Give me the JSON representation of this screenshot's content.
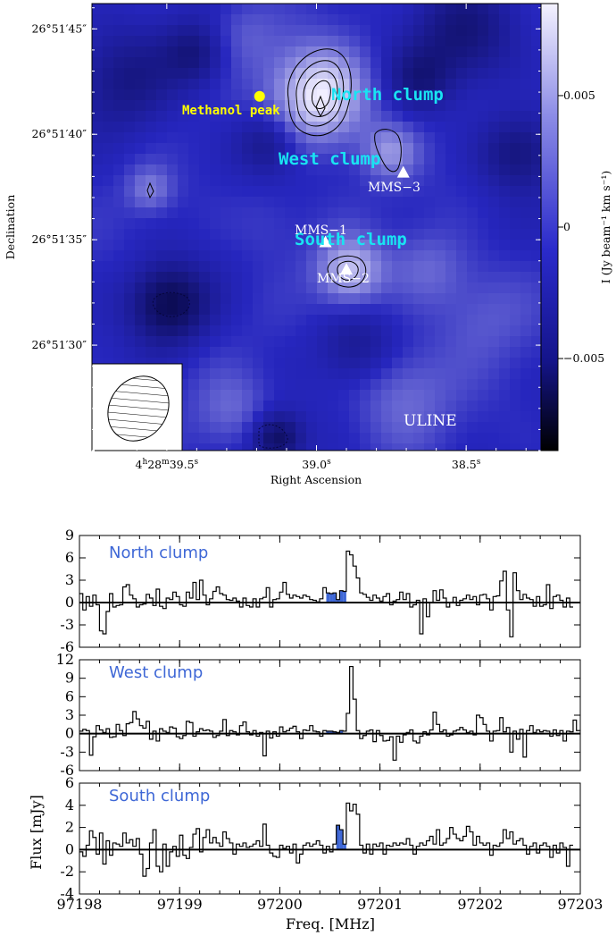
{
  "colors": {
    "map_low": "#05053a",
    "map_mid": "#2626c8",
    "map_high": "#f2f0ff",
    "cyan": "#19e3f2",
    "yellow": "#ffff00",
    "fill_blue": "#3e67d6"
  },
  "chart_data": [
    {
      "type": "heatmap",
      "subtitle": "ULINE",
      "xlabel": "Right Ascension",
      "ylabel": "Declination",
      "x_ticks": [
        {
          "main": "4",
          "sup1": "h",
          "mid": "28",
          "sup2": "m",
          "tail": "39.5",
          "sup3": "s",
          "pre": ""
        },
        {
          "main": "39.0",
          "sup1": "s",
          "pre": ""
        },
        {
          "main": "38.5",
          "sup1": "s",
          "pre": ""
        }
      ],
      "x_tick_values": [
        39.5,
        39.0,
        38.5
      ],
      "xlim": [
        39.75,
        38.25
      ],
      "y_tick_labels": [
        "26°51′45″",
        "26°51′40″",
        "26°51′35″",
        "26°51′30″"
      ],
      "y_tick_values": [
        45,
        40,
        35,
        30
      ],
      "ylim": [
        25.0,
        46.2
      ],
      "colorbar_label": "I (Jy beam⁻¹ km s⁻¹)",
      "colorbar_ticks": [
        "0.005",
        "0",
        "−0.005"
      ],
      "colorbar_tick_values": [
        0.005,
        0,
        -0.005
      ],
      "colorbar_range": [
        -0.0085,
        0.0085
      ],
      "annotations": {
        "north_clump": "North clump",
        "west_clump": "West clump",
        "south_clump": "South clump",
        "methanol_peak": "Methanol peak",
        "mms1": "MMS−1",
        "mms2": "MMS−2",
        "mms3": "MMS−3"
      },
      "sources": [
        {
          "name": "Methanol peak",
          "ra": 39.19,
          "dec": 41.8,
          "marker": "circle"
        },
        {
          "name": "MMS-1",
          "ra": 38.97,
          "dec": 34.9,
          "marker": "triangle"
        },
        {
          "name": "MMS-2",
          "ra": 38.9,
          "dec": 33.6,
          "marker": "triangle"
        },
        {
          "name": "MMS-3",
          "ra": 38.71,
          "dec": 38.2,
          "marker": "triangle"
        }
      ]
    },
    {
      "type": "line",
      "title": "North clump",
      "xlabel": "Freq. [MHz]",
      "ylabel": "Flux [mJy]",
      "x_ticks": [
        "97198",
        "97199",
        "97200",
        "97201",
        "97202",
        "97203"
      ],
      "y_ticks": [
        "9",
        "6",
        "3",
        "0",
        "-3",
        "-6"
      ],
      "xlim": [
        97198,
        97203
      ],
      "ylim": [
        -6,
        9
      ],
      "highlight_range": [
        97200.45,
        97200.67
      ],
      "x_start": 97198.0,
      "channel_width": 0.0333,
      "values": [
        1.2,
        -1.0,
        0.8,
        -0.5,
        1.0,
        -0.3,
        -3.8,
        -4.2,
        -1.2,
        1.2,
        -0.6,
        -0.4,
        -0.3,
        2.1,
        2.4,
        1.0,
        0.5,
        -0.6,
        -0.3,
        -0.2,
        1.1,
        0.6,
        -0.4,
        1.8,
        -0.5,
        -0.8,
        0.6,
        0.4,
        1.4,
        0.8,
        -0.3,
        -0.5,
        1.4,
        0.6,
        2.7,
        0.4,
        3.0,
        1.0,
        -0.3,
        0.5,
        1.5,
        2.1,
        1.2,
        1.0,
        0.4,
        0.3,
        0.6,
        0.2,
        -0.6,
        0.6,
        -0.4,
        -0.6,
        0.5,
        -0.6,
        0.5,
        0.7,
        2.0,
        -0.6,
        0.4,
        0.5,
        1.4,
        2.7,
        1.1,
        0.6,
        1.0,
        0.8,
        0.6,
        1.0,
        0.8,
        0.4,
        0.3,
        0.1,
        0.5,
        2.0,
        1.3,
        1.2,
        1.3,
        0.4,
        1.6,
        1.5,
        6.9,
        6.4,
        4.9,
        3.3,
        1.3,
        1.1,
        0.7,
        0.3,
        1.0,
        0.6,
        0.2,
        0.8,
        1.2,
        -0.3,
        0.2,
        0.4,
        1.4,
        0.4,
        1.2,
        -0.6,
        -0.3,
        0.3,
        -4.2,
        0.5,
        -1.9,
        0.0,
        1.6,
        0.3,
        1.7,
        0.6,
        -0.6,
        0.0,
        0.7,
        -0.4,
        0.3,
        0.5,
        1.0,
        0.4,
        0.8,
        -0.3,
        1.0,
        1.1,
        0.5,
        -1.0,
        0.8,
        0.9,
        2.9,
        4.2,
        -1.0,
        -4.6,
        4.0,
        1.6,
        0.4,
        1.1,
        0.6,
        0.4,
        -0.5,
        0.8,
        -0.5,
        -0.3,
        2.4,
        -0.8,
        0.8,
        1.0,
        0.3,
        -0.6,
        0.6,
        -0.6
      ]
    },
    {
      "type": "line",
      "title": "West clump",
      "xlabel": "Freq. [MHz]",
      "ylabel": "Flux [mJy]",
      "x_ticks": [
        "97198",
        "97199",
        "97200",
        "97201",
        "97202",
        "97203"
      ],
      "y_ticks": [
        "12",
        "9",
        "6",
        "3",
        "0",
        "-3",
        "-6"
      ],
      "xlim": [
        97198,
        97203
      ],
      "ylim": [
        -6,
        12
      ],
      "highlight_range": [
        97200.45,
        97200.62
      ],
      "x_start": 97198.0,
      "channel_width": 0.0333,
      "values": [
        0.4,
        0.7,
        0.5,
        -3.5,
        -0.5,
        1.3,
        0.6,
        0.2,
        0.8,
        -0.6,
        -0.5,
        1.5,
        0.5,
        -0.3,
        1.6,
        1.8,
        3.6,
        2.4,
        1.3,
        0.9,
        2.0,
        -0.9,
        0.4,
        -1.2,
        0.8,
        0.4,
        0.2,
        1.1,
        0.9,
        -0.5,
        -0.8,
        -0.3,
        2.0,
        1.8,
        -0.4,
        0.3,
        0.8,
        0.5,
        0.6,
        0.4,
        -0.6,
        -0.3,
        0.4,
        2.3,
        -0.3,
        0.5,
        0.3,
        -0.2,
        1.3,
        1.9,
        0.3,
        -0.2,
        0.5,
        -0.4,
        0.2,
        -3.6,
        0.4,
        -0.7,
        0.3,
        -0.4,
        1.1,
        0.3,
        0.5,
        0.9,
        1.2,
        0.3,
        -0.8,
        0.6,
        0.5,
        1.3,
        0.4,
        0.3,
        -0.4,
        0.5,
        0.4,
        0.4,
        0.3,
        0.2,
        0.5,
        0.4,
        3.3,
        10.9,
        5.6,
        0.5,
        -0.8,
        -0.3,
        0.4,
        0.6,
        -1.3,
        0.5,
        -0.3,
        -1.2,
        -1.1,
        -0.5,
        -4.3,
        -0.4,
        -1.4,
        -0.2,
        0.2,
        0.6,
        -1.2,
        -1.5,
        -0.4,
        0.3,
        -0.2,
        0.6,
        3.5,
        1.5,
        0.3,
        0.6,
        -0.4,
        -0.2,
        0.4,
        0.6,
        1.0,
        0.6,
        0.2,
        0.4,
        -0.2,
        3.0,
        2.6,
        1.5,
        0.4,
        -1.2,
        0.4,
        0.5,
        2.6,
        0.3,
        1.0,
        -3.0,
        0.4,
        -0.9,
        0.7,
        -3.8,
        0.5,
        1.3,
        0.2,
        0.6,
        0.3,
        0.5,
        0.4,
        -0.4,
        0.6,
        -0.3,
        0.5,
        -1.2,
        0.4,
        0.3,
        2.2,
        0.5
      ]
    },
    {
      "type": "line",
      "title": "South clump",
      "xlabel": "Freq. [MHz]",
      "ylabel": "Flux [mJy]",
      "x_ticks": [
        "97198",
        "97199",
        "97200",
        "97201",
        "97202",
        "97203"
      ],
      "y_ticks": [
        "6",
        "4",
        "2",
        "0",
        "-2",
        "-4"
      ],
      "xlim": [
        97198,
        97203
      ],
      "ylim": [
        -4,
        6
      ],
      "highlight_range": [
        97200.55,
        97200.67
      ],
      "x_start": 97198.0,
      "channel_width": 0.0333,
      "values": [
        -0.2,
        -0.6,
        0.4,
        1.7,
        1.1,
        -0.4,
        1.5,
        -1.3,
        0.8,
        -0.5,
        0.6,
        0.5,
        0.3,
        1.5,
        0.6,
        0.9,
        0.3,
        1.0,
        -0.4,
        -2.4,
        -1.7,
        0.6,
        1.8,
        -1.5,
        -2.0,
        0.5,
        -1.5,
        -0.2,
        0.3,
        -0.6,
        1.3,
        -0.5,
        -0.8,
        0.2,
        1.4,
        1.9,
        -0.2,
        1.1,
        1.8,
        0.6,
        1.1,
        0.6,
        0.3,
        1.6,
        1.0,
        0.6,
        -0.4,
        0.5,
        0.3,
        0.6,
        0.2,
        0.3,
        0.5,
        0.8,
        0.3,
        2.3,
        0.4,
        -0.3,
        -0.6,
        -0.7,
        0.4,
        0.1,
        0.3,
        -0.3,
        0.5,
        -1.2,
        -0.4,
        0.4,
        0.6,
        0.3,
        0.5,
        0.8,
        0.4,
        -0.3,
        0.3,
        -0.2,
        0.5,
        2.2,
        1.8,
        0.5,
        4.2,
        3.5,
        4.1,
        3.2,
        0.4,
        -0.3,
        0.5,
        -0.4,
        0.5,
        0.3,
        0.6,
        -0.4,
        0.4,
        0.3,
        0.6,
        0.4,
        0.6,
        0.5,
        1.0,
        0.4,
        -0.4,
        0.3,
        0.6,
        0.4,
        0.8,
        1.2,
        0.5,
        1.8,
        0.4,
        0.6,
        1.0,
        2.0,
        1.4,
        1.0,
        0.8,
        1.2,
        2.1,
        1.6,
        0.4,
        1.2,
        0.6,
        0.4,
        0.6,
        -0.5,
        0.4,
        0.3,
        0.6,
        1.8,
        1.0,
        1.6,
        0.5,
        0.8,
        1.0,
        0.4,
        -0.4,
        0.3,
        0.6,
        -0.3,
        0.4,
        0.6,
        0.3,
        -0.7,
        0.4,
        -0.3,
        0.6,
        0.2,
        -1.5,
        0.4
      ]
    }
  ]
}
